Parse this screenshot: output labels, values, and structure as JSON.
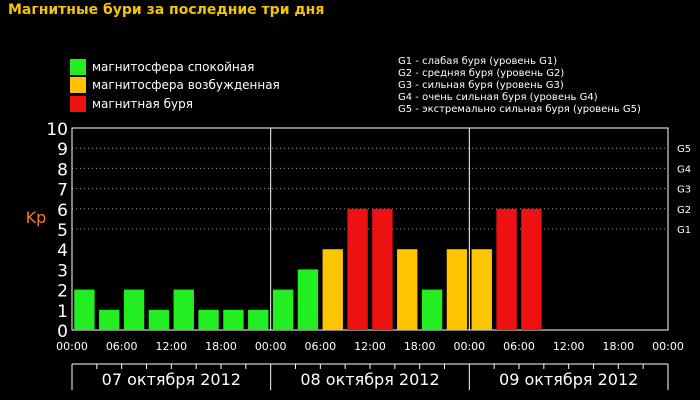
{
  "title": "Магнитные бури за последние три дня",
  "legend": [
    {
      "label": "магнитосфера спокойная",
      "color": "#22ee22"
    },
    {
      "label": "магнитосфера возбужденная",
      "color": "#ffc400"
    },
    {
      "label": "магнитная буря",
      "color": "#ee1111"
    }
  ],
  "storm_scale": [
    "G1 - слабая буря (уровень G1)",
    "G2 - средняя буря (уровень G2)",
    "G3 - сильная буря (уровень G3)",
    "G4 - очень сильная буря (уровень G4)",
    "G5 - экстремально сильная буря (уровень G5)"
  ],
  "chart_data": {
    "type": "bar",
    "ylabel": "Kp",
    "ylim": [
      0,
      10
    ],
    "y_ticks": [
      "0",
      "1",
      "2",
      "3",
      "4",
      "5",
      "6",
      "7",
      "8",
      "9",
      "10"
    ],
    "g_levels": [
      {
        "label": "G1",
        "kp": 5
      },
      {
        "label": "G2",
        "kp": 6
      },
      {
        "label": "G3",
        "kp": 7
      },
      {
        "label": "G4",
        "kp": 8
      },
      {
        "label": "G5",
        "kp": 9
      }
    ],
    "x_ticks": [
      "00:00",
      "06:00",
      "12:00",
      "18:00",
      "00:00",
      "06:00",
      "12:00",
      "18:00",
      "00:00",
      "06:00",
      "12:00",
      "18:00",
      "00:00"
    ],
    "days": [
      "07 октября 2012",
      "08 октября 2012",
      "09 октября 2012"
    ],
    "interval_hours": 3,
    "values": [
      2,
      1,
      2,
      1,
      2,
      1,
      1,
      1,
      2,
      3,
      4,
      6,
      6,
      4,
      2,
      4,
      4,
      6,
      6
    ],
    "status": [
      "quiet",
      "quiet",
      "quiet",
      "quiet",
      "quiet",
      "quiet",
      "quiet",
      "quiet",
      "quiet",
      "quiet",
      "disturbed",
      "storm",
      "storm",
      "disturbed",
      "quiet",
      "disturbed",
      "disturbed",
      "storm",
      "storm"
    ],
    "colors": {
      "quiet": "#22ee22",
      "disturbed": "#ffc400",
      "storm": "#ee1111"
    },
    "grid": true
  }
}
